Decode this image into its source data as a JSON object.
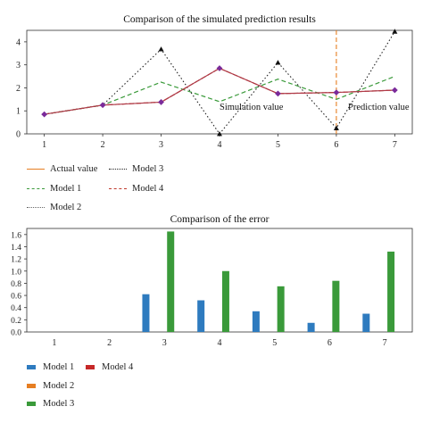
{
  "chart_data": [
    {
      "type": "line",
      "title": "Comparison of the simulated prediction results",
      "categories": [
        1,
        2,
        3,
        4,
        5,
        6,
        7
      ],
      "ylim": [
        0,
        4.5
      ],
      "yticks": [
        0,
        1,
        2,
        3,
        4
      ],
      "grid": false,
      "series": [
        {
          "name": "Actual value",
          "values": [
            0.85,
            1.25,
            1.38,
            2.85,
            1.75,
            1.8,
            1.9
          ],
          "color": "#b03a48",
          "marker": "diamond",
          "marker_color": "#7a2a9a"
        },
        {
          "name": "Model 1",
          "values": [
            0.85,
            1.25,
            2.25,
            1.4,
            2.38,
            1.5,
            2.5
          ],
          "color": "#3a9a3a",
          "dash": "dashed"
        },
        {
          "name": "Model 2",
          "values": [
            0.85,
            1.25,
            1.38,
            2.85,
            1.75,
            1.8,
            1.9
          ],
          "color": "#666666",
          "dash": "dotted"
        },
        {
          "name": "Model 3",
          "values": [
            0.85,
            1.25,
            3.68,
            0.0,
            3.1,
            0.25,
            4.45
          ],
          "color": "#222222",
          "dash": "dotted",
          "marker": "triangle"
        },
        {
          "name": "Model 4",
          "values": [
            0.85,
            1.25,
            1.38,
            2.85,
            1.75,
            1.8,
            1.9
          ],
          "color": "#c0392b",
          "dash": "dashed"
        }
      ],
      "vline": {
        "x": 6,
        "color": "#e67e22",
        "dash": "dashed"
      },
      "annotations": [
        {
          "text": "Simulation value",
          "x": 4,
          "y": 1.05
        },
        {
          "text": "Prediction value",
          "x": 6.2,
          "y": 1.05
        }
      ],
      "legend": {
        "placement": "bottom",
        "columns": [
          [
            "Actual value",
            "Model 1",
            "Model 2"
          ],
          [
            "Model 3",
            "Model 4"
          ]
        ]
      }
    },
    {
      "type": "bar",
      "title": "Comparison of the error",
      "categories": [
        1,
        2,
        3,
        4,
        5,
        6,
        7
      ],
      "ylim": [
        0,
        1.7
      ],
      "yticks": [
        0.0,
        0.2,
        0.4,
        0.6,
        0.8,
        1.0,
        1.2,
        1.4,
        1.6
      ],
      "ytick_labels": [
        "0.0",
        "0.2",
        "0.4",
        "0.6",
        "0.8",
        "1.0",
        "1.2",
        "1.4",
        "1.6"
      ],
      "grid": false,
      "series": [
        {
          "name": "Model 1",
          "values": [
            0,
            0,
            0.62,
            0.52,
            0.34,
            0.15,
            0.3
          ],
          "color": "#2e7bbf"
        },
        {
          "name": "Model 2",
          "values": [
            0,
            0,
            0,
            0,
            0,
            0,
            0
          ],
          "color": "#e67e22"
        },
        {
          "name": "Model 3",
          "values": [
            0,
            0,
            1.65,
            1.0,
            0.75,
            0.84,
            1.32
          ],
          "color": "#3a9a3a"
        },
        {
          "name": "Model 4",
          "values": [
            0,
            0,
            0,
            0,
            0,
            0,
            0
          ],
          "color": "#c62828"
        }
      ],
      "legend": {
        "placement": "bottom",
        "columns": [
          [
            "Model 1",
            "Model 2",
            "Model 3"
          ],
          [
            "Model 4"
          ]
        ]
      }
    }
  ]
}
